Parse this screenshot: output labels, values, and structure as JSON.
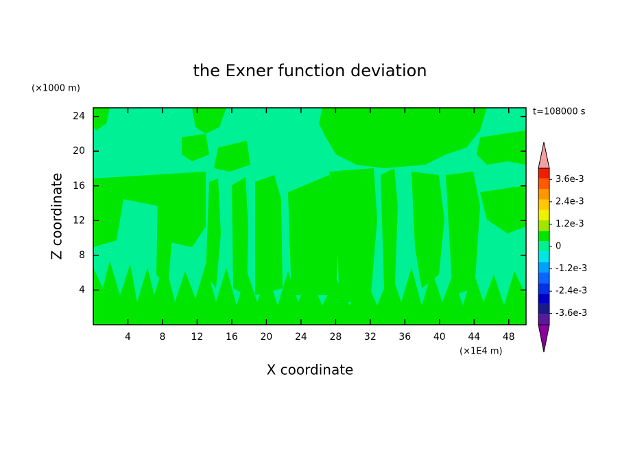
{
  "chart_data": {
    "type": "contour",
    "title": "the Exner function deviation",
    "x_label": "X coordinate",
    "y_label": "Z coordinate",
    "x_unit": "(×1E4 m)",
    "y_unit": "(×1000 m)",
    "annotation": "t=108000 s",
    "xlim": [
      0,
      50
    ],
    "xticks": [
      4,
      8,
      12,
      16,
      20,
      24,
      28,
      32,
      36,
      40,
      44,
      48
    ],
    "ylim": [
      0,
      25
    ],
    "yticks": [
      4,
      8,
      12,
      16,
      20,
      24
    ],
    "colorbar": {
      "clim": [
        -0.0042,
        0.0042
      ],
      "colors": [
        "#5a189a",
        "#1a1a8c",
        "#0000c8",
        "#0032e6",
        "#0a64ff",
        "#00a0ff",
        "#00e6e6",
        "#00f096",
        "#00e600",
        "#a0e600",
        "#f0f000",
        "#ffc800",
        "#ff9600",
        "#ff5a00",
        "#f01e00"
      ],
      "under_color": "#8c00a0",
      "over_color": "#f4a0a0",
      "ticks": [
        {
          "value": 0.0036,
          "label": "3.6e-3"
        },
        {
          "value": 0.0024,
          "label": "2.4e-3"
        },
        {
          "value": 0.0012,
          "label": "1.2e-3"
        },
        0,
        {
          "value": -0.0012,
          "label": "-1.2e-3"
        },
        {
          "value": -0.0024,
          "label": "-2.4e-3"
        },
        {
          "value": -0.0036,
          "label": "-3.6e-3"
        }
      ]
    }
  }
}
